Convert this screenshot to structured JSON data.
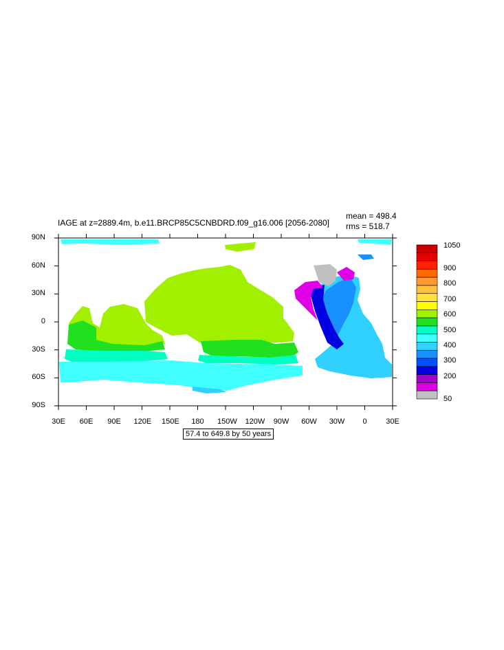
{
  "title": "IAGE at z=2889.4m, b.e11.BRCP85C5CNBDRD.f09_g16.006 [2056-2080]",
  "stats": {
    "mean": "mean = 498.4",
    "rms": "rms = 518.7"
  },
  "caption": "57.4 to 649.8 by 50 years",
  "map": {
    "lon_labels": [
      "30E",
      "60E",
      "90E",
      "120E",
      "150E",
      "180",
      "150W",
      "120W",
      "90W",
      "60W",
      "30W",
      "0",
      "30E"
    ],
    "lat_labels": [
      "90N",
      "60N",
      "30N",
      "0",
      "30S",
      "60S",
      "90S"
    ]
  },
  "colorbar": {
    "labels": [
      "1050",
      "900",
      "800",
      "700",
      "600",
      "500",
      "400",
      "300",
      "200",
      "50"
    ],
    "colors": [
      "#c80000",
      "#e60000",
      "#ff2000",
      "#ff6a00",
      "#ff9a30",
      "#ffc040",
      "#ffe040",
      "#ffff00",
      "#a0f000",
      "#20e020",
      "#00ffc0",
      "#40ffff",
      "#30d0ff",
      "#1890ff",
      "#0050ff",
      "#0000e0",
      "#a000d0",
      "#e000e8",
      "#c0c0c0"
    ]
  }
}
